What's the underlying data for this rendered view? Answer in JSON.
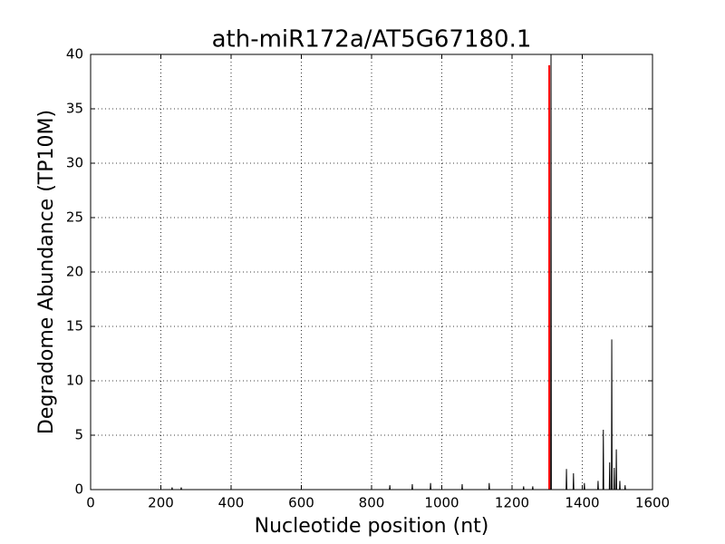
{
  "chart_data": {
    "type": "line",
    "title": "ath-miR172a/AT5G67180.1",
    "x_label": "Nucleotide position (nt)",
    "y_label": "Degradome Abundance (TP10M)",
    "xlim": [
      0,
      1600
    ],
    "xticks": [
      0,
      200,
      400,
      600,
      800,
      1000,
      1200,
      1400,
      1600
    ],
    "ylim": [
      0,
      40
    ],
    "yticks": [
      0,
      5,
      10,
      15,
      20,
      25,
      30,
      35,
      40
    ],
    "grid": true,
    "series": [
      {
        "color": "#000000",
        "x": [
          0,
          231,
          232,
          233,
          257,
          258,
          259,
          851,
          852,
          853,
          915,
          916,
          917,
          967,
          968,
          969,
          1057,
          1058,
          1059,
          1134,
          1135,
          1136,
          1232,
          1233,
          1234,
          1258,
          1259,
          1260,
          1310,
          1311,
          1312,
          1354,
          1355,
          1356,
          1374,
          1375,
          1376,
          1405,
          1406,
          1407,
          1444,
          1445,
          1446,
          1459,
          1460,
          1461,
          1477,
          1478,
          1479,
          1483,
          1484,
          1485,
          1490,
          1491,
          1492,
          1496,
          1497,
          1498,
          1506,
          1507,
          1508,
          1521,
          1522,
          1523
        ],
        "values": [
          0,
          0,
          0.2,
          0,
          0,
          0.2,
          0,
          0,
          0.4,
          0,
          0,
          0.5,
          0,
          0,
          0.6,
          0,
          0,
          0.5,
          0,
          0,
          0.6,
          0,
          0,
          0.3,
          0,
          0,
          0.3,
          0,
          0,
          42,
          0,
          0,
          1.9,
          0,
          0,
          1.5,
          0,
          0,
          0.6,
          0,
          0,
          0.8,
          0,
          0,
          5.5,
          0,
          0,
          2.5,
          0,
          0,
          13.8,
          0,
          0,
          2.0,
          0,
          0,
          3.7,
          0,
          0,
          0.8,
          0,
          0,
          0.4,
          0
        ]
      },
      {
        "color": "#ff0000",
        "x": [
          1306,
          1306
        ],
        "values": [
          0,
          39
        ]
      }
    ]
  }
}
